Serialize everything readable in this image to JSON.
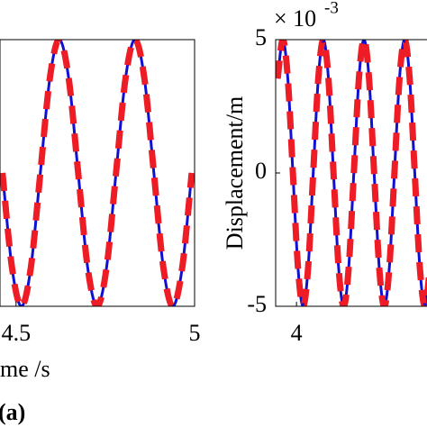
{
  "chart_data": [
    {
      "type": "line",
      "xlabel": "me /s",
      "panel_label": "(a)",
      "x": [
        4.462,
        4.4885,
        4.515,
        4.5415,
        4.568,
        4.5945,
        4.621,
        4.6475,
        4.674,
        4.7005,
        4.727,
        4.7535,
        4.78,
        4.8065,
        4.833,
        4.8595,
        4.886,
        4.9125,
        4.939,
        4.9655,
        4.992
      ],
      "series": [
        {
          "color": "#1010d0",
          "style": "solid",
          "values": [
            0,
            -3.54,
            -5,
            -3.54,
            0,
            3.54,
            5,
            3.54,
            0,
            -3.54,
            -5,
            -3.54,
            0,
            3.54,
            5,
            3.54,
            0,
            -3.54,
            -5,
            -3.54,
            0
          ]
        },
        {
          "color": "#ee1c25",
          "style": "dashed",
          "values": [
            0,
            -3.54,
            -5,
            -3.54,
            0,
            3.54,
            5,
            3.54,
            0,
            -3.54,
            -5,
            -3.54,
            0,
            3.54,
            5,
            3.54,
            0,
            -3.54,
            -5,
            -3.54,
            0
          ]
        }
      ],
      "xlim": [
        4.455,
        5
      ],
      "xticks": [
        4.5,
        5
      ],
      "ylim": [
        -5,
        5
      ]
    },
    {
      "type": "line",
      "ylabel": "Displacement/m",
      "y_multiplier": "× 10",
      "y_exponent": "-3",
      "x": [
        3.9458,
        3.9604,
        3.975,
        3.9896,
        4.0042,
        4.0189,
        4.0335,
        4.0481,
        4.0627,
        4.0773,
        4.0919,
        4.1065,
        4.1211,
        4.1357,
        4.1503,
        4.165,
        4.1796,
        4.1942,
        4.2088,
        4.2234,
        4.238,
        4.2526,
        4.2672,
        4.2818,
        4.2964,
        4.3111,
        4.3257,
        4.3403,
        4.3549,
        4.3695,
        4.3841
      ],
      "series": [
        {
          "color": "#1010d0",
          "style": "solid",
          "values": [
            3.54,
            5,
            3.54,
            0,
            -3.54,
            -5,
            -3.54,
            0,
            3.54,
            5,
            3.54,
            0,
            -3.54,
            -5,
            -3.54,
            0,
            3.54,
            5,
            3.54,
            0,
            -3.54,
            -5,
            -3.54,
            0,
            3.54,
            5,
            3.54,
            0,
            -3.54,
            -5,
            -3.54
          ]
        },
        {
          "color": "#ee1c25",
          "style": "dashed",
          "values": [
            3.54,
            5,
            3.54,
            0,
            -3.54,
            -5,
            -3.54,
            0,
            3.54,
            5,
            3.54,
            0,
            -3.54,
            -5,
            -3.54,
            0,
            3.54,
            5,
            3.54,
            0,
            -3.54,
            -5,
            -3.54,
            0,
            3.54,
            5,
            3.54,
            0,
            -3.54,
            -5,
            -3.54
          ]
        }
      ],
      "xlim": [
        3.94,
        4.5
      ],
      "xticks": [
        4
      ],
      "ylim": [
        -5,
        5
      ],
      "yticks": [
        5,
        0,
        -5
      ]
    }
  ]
}
